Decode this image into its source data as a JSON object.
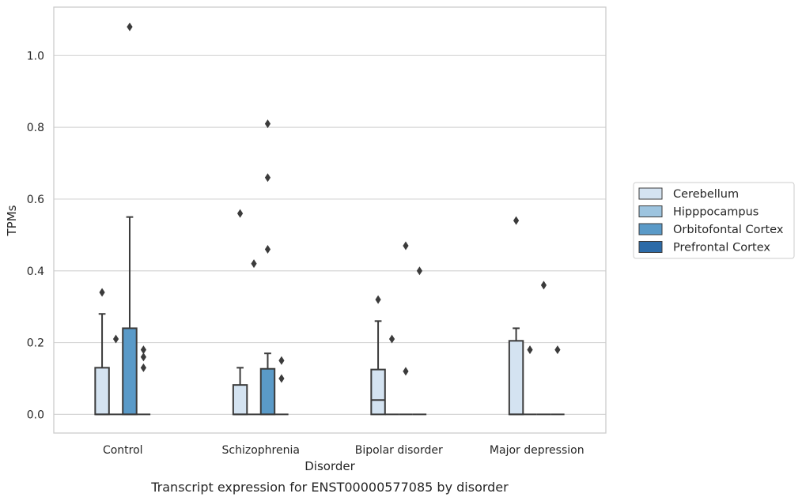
{
  "caption": "Transcript expression for ENST00000577085 by disorder",
  "chart_data": {
    "type": "box",
    "title": "",
    "xlabel": "Disorder",
    "ylabel": "TPMs",
    "ylim": [
      -0.052,
      1.135
    ],
    "yticks": [
      0.0,
      0.2,
      0.4,
      0.6,
      0.8,
      1.0
    ],
    "ytick_labels": [
      "0.0",
      "0.2",
      "0.4",
      "0.6",
      "0.8",
      "1.0"
    ],
    "grid": "horizontal",
    "legend_position": "right",
    "categories": [
      "Control",
      "Schizophrenia",
      "Bipolar disorder",
      "Major depression"
    ],
    "series": [
      {
        "name": "Cerebellum",
        "color": "#d4e3f1",
        "boxes": [
          {
            "q1": 0.0,
            "median": 0.0,
            "q3": 0.13,
            "whislo": 0.0,
            "whishi": 0.28,
            "fliers": [
              0.34
            ]
          },
          {
            "q1": 0.0,
            "median": 0.0,
            "q3": 0.082,
            "whislo": 0.0,
            "whishi": 0.13,
            "fliers": [
              0.56
            ]
          },
          {
            "q1": 0.0,
            "median": 0.04,
            "q3": 0.125,
            "whislo": 0.0,
            "whishi": 0.26,
            "fliers": [
              0.32
            ]
          },
          {
            "q1": 0.0,
            "median": 0.0,
            "q3": 0.205,
            "whislo": 0.0,
            "whishi": 0.24,
            "fliers": [
              0.54
            ]
          }
        ]
      },
      {
        "name": "Hipppocampus",
        "color": "#9dc4df",
        "boxes": [
          {
            "q1": 0.0,
            "median": 0.0,
            "q3": 0.0,
            "whislo": 0.0,
            "whishi": 0.0,
            "fliers": [
              0.21
            ]
          },
          {
            "q1": 0.0,
            "median": 0.0,
            "q3": 0.0,
            "whislo": 0.0,
            "whishi": 0.0,
            "fliers": [
              0.42
            ]
          },
          {
            "q1": 0.0,
            "median": 0.0,
            "q3": 0.0,
            "whislo": 0.0,
            "whishi": 0.0,
            "fliers": [
              0.21
            ]
          },
          {
            "q1": 0.0,
            "median": 0.0,
            "q3": 0.0,
            "whislo": 0.0,
            "whishi": 0.0,
            "fliers": [
              0.18
            ]
          }
        ]
      },
      {
        "name": "Orbitofontal Cortex",
        "color": "#5a9ac8",
        "boxes": [
          {
            "q1": 0.0,
            "median": 0.0,
            "q3": 0.24,
            "whislo": 0.0,
            "whishi": 0.55,
            "fliers": [
              1.08
            ]
          },
          {
            "q1": 0.0,
            "median": 0.0,
            "q3": 0.127,
            "whislo": 0.0,
            "whishi": 0.17,
            "fliers": [
              0.46,
              0.66,
              0.81
            ]
          },
          {
            "q1": 0.0,
            "median": 0.0,
            "q3": 0.0,
            "whislo": 0.0,
            "whishi": 0.0,
            "fliers": [
              0.12,
              0.47
            ]
          },
          {
            "q1": 0.0,
            "median": 0.0,
            "q3": 0.0,
            "whislo": 0.0,
            "whishi": 0.0,
            "fliers": [
              0.36
            ]
          }
        ]
      },
      {
        "name": "Prefrontal Cortex",
        "color": "#2c6ba8",
        "boxes": [
          {
            "q1": 0.0,
            "median": 0.0,
            "q3": 0.0,
            "whislo": 0.0,
            "whishi": 0.0,
            "fliers": [
              0.13,
              0.16,
              0.18
            ]
          },
          {
            "q1": 0.0,
            "median": 0.0,
            "q3": 0.0,
            "whislo": 0.0,
            "whishi": 0.0,
            "fliers": [
              0.1,
              0.15
            ]
          },
          {
            "q1": 0.0,
            "median": 0.0,
            "q3": 0.0,
            "whislo": 0.0,
            "whishi": 0.0,
            "fliers": [
              0.4
            ]
          },
          {
            "q1": 0.0,
            "median": 0.0,
            "q3": 0.0,
            "whislo": 0.0,
            "whishi": 0.0,
            "fliers": [
              0.18
            ]
          }
        ]
      }
    ]
  }
}
